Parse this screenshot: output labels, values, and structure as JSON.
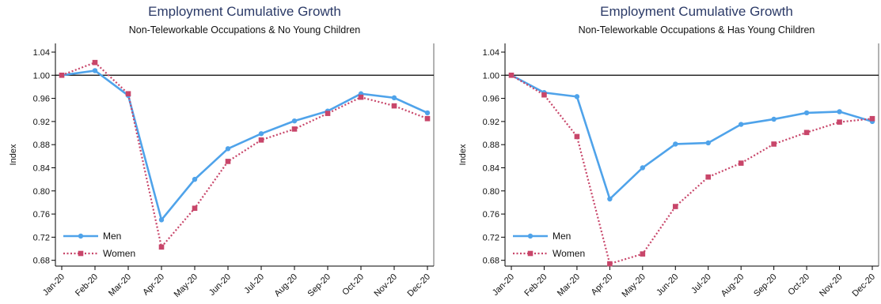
{
  "colors": {
    "men": "#4fa3ea",
    "women": "#c8466a",
    "axis": "#000000"
  },
  "chart_data": [
    {
      "type": "line",
      "title": "Employment Cumulative Growth",
      "subtitle": "Non-Teleworkable Occupations & No Young Children",
      "xlabel": "",
      "ylabel": "Index",
      "ylim": [
        0.67,
        1.055
      ],
      "yticks": [
        "0.68",
        "0.72",
        "0.76",
        "0.80",
        "0.84",
        "0.88",
        "0.92",
        "0.96",
        "1.00",
        "1.04"
      ],
      "categories": [
        "Jan-20",
        "Feb-20",
        "Mar-20",
        "Apr-20",
        "May-20",
        "Jun-20",
        "Jul-20",
        "Aug-20",
        "Sep-20",
        "Oct-20",
        "Nov-20",
        "Dec-20"
      ],
      "reference_line": 1.0,
      "legend": "bottom-left",
      "grid": false,
      "series": [
        {
          "name": "Men",
          "style": "solid",
          "marker": "circle",
          "values": [
            1.0,
            1.008,
            0.965,
            0.75,
            0.82,
            0.873,
            0.899,
            0.921,
            0.938,
            0.968,
            0.961,
            0.935
          ]
        },
        {
          "name": "Women",
          "style": "dotted",
          "marker": "square",
          "values": [
            1.0,
            1.022,
            0.968,
            0.703,
            0.77,
            0.851,
            0.888,
            0.907,
            0.934,
            0.962,
            0.947,
            0.925
          ]
        }
      ]
    },
    {
      "type": "line",
      "title": "Employment Cumulative Growth",
      "subtitle": "Non-Teleworkable Occupations & Has Young Children",
      "xlabel": "",
      "ylabel": "Index",
      "ylim": [
        0.67,
        1.055
      ],
      "yticks": [
        "0.68",
        "0.72",
        "0.76",
        "0.80",
        "0.84",
        "0.88",
        "0.92",
        "0.96",
        "1.00",
        "1.04"
      ],
      "categories": [
        "Jan-20",
        "Feb-20",
        "Mar-20",
        "Apr-20",
        "May-20",
        "Jun-20",
        "Jul-20",
        "Aug-20",
        "Sep-20",
        "Oct-20",
        "Nov-20",
        "Dec-20"
      ],
      "reference_line": 1.0,
      "legend": "bottom-left",
      "grid": false,
      "series": [
        {
          "name": "Men",
          "style": "solid",
          "marker": "circle",
          "values": [
            1.0,
            0.97,
            0.963,
            0.786,
            0.84,
            0.881,
            0.883,
            0.915,
            0.924,
            0.935,
            0.937,
            0.92
          ]
        },
        {
          "name": "Women",
          "style": "dotted",
          "marker": "square",
          "values": [
            1.0,
            0.966,
            0.894,
            0.674,
            0.691,
            0.773,
            0.824,
            0.848,
            0.881,
            0.901,
            0.919,
            0.925
          ]
        }
      ]
    }
  ]
}
